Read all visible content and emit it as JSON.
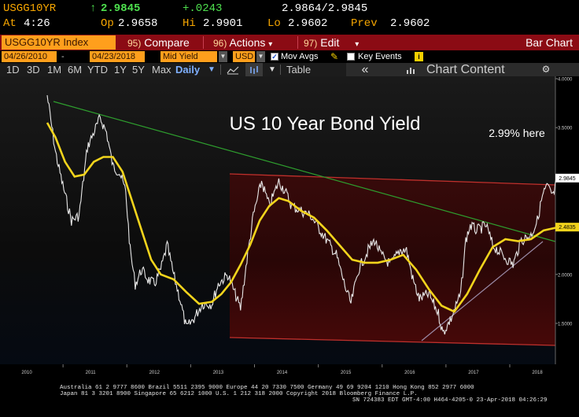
{
  "quote": {
    "ticker": "USGG10YR",
    "arrow": "↑",
    "last": "2.9845",
    "change": "+.0243",
    "bid_ask": "2.9864/2.9845",
    "time_label": "At",
    "time": "4:26",
    "open_label": "Op",
    "open": "2.9658",
    "high_label": "Hi",
    "high": "2.9901",
    "low_label": "Lo",
    "low": "2.9602",
    "prev_label": "Prev",
    "prev": "2.9602"
  },
  "toolbar": {
    "security": "USGG10YR Index",
    "compare_num": "95)",
    "compare": "Compare",
    "actions_num": "96)",
    "actions": "Actions",
    "edit_num": "97)",
    "edit": "Edit",
    "view": "Bar Chart"
  },
  "filters": {
    "start_date": "04/26/2010",
    "end_date": "04/23/2018",
    "field": "Mid Yield",
    "currency": "USD",
    "mov_avgs": "Mov Avgs",
    "key_events": "Key Events",
    "info_icon": "i"
  },
  "periods": {
    "items": [
      "1D",
      "3D",
      "1M",
      "6M",
      "YTD",
      "1Y",
      "5Y",
      "Max"
    ],
    "frequency": "Daily",
    "table": "Table",
    "chart_content": "Chart Content"
  },
  "colors": {
    "accent_orange": "#ff9f1c",
    "toolbar_red": "#8b0b14",
    "ma_yellow": "#f2d41c",
    "trend_green": "#2e9e2e",
    "channel_red": "#c0302c",
    "support_line": "#9a8aa6"
  },
  "chart_data": {
    "type": "line",
    "title": "US 10 Year Bond Yield",
    "annotation": "2.99% here",
    "xlabel": "",
    "ylabel": "",
    "x_ticks": [
      "2010",
      "2011",
      "2012",
      "2013",
      "2014",
      "2015",
      "2016",
      "2017",
      "2018"
    ],
    "y_ticks": [
      "4.0000",
      "3.5000",
      "3.0000",
      "2.5000",
      "2.0000",
      "1.5000"
    ],
    "ylim": [
      1.2,
      4.0
    ],
    "last_value_label": "2.9845",
    "ma_value_label": "2.4835",
    "series": [
      {
        "values": [
          [
            "2010.32",
            3.83
          ],
          [
            "2010.45",
            3.25
          ],
          [
            "2010.55",
            2.95
          ],
          [
            "2010.70",
            2.55
          ],
          [
            "2010.82",
            2.6
          ],
          [
            "2010.95",
            3.3
          ],
          [
            "2011.05",
            3.45
          ],
          [
            "2011.15",
            3.6
          ],
          [
            "2011.25",
            3.45
          ],
          [
            "2011.35",
            3.1
          ],
          [
            "2011.45",
            3.05
          ],
          [
            "2011.55",
            2.85
          ],
          [
            "2011.62",
            2.25
          ],
          [
            "2011.70",
            1.9
          ],
          [
            "2011.80",
            2.05
          ],
          [
            "2011.90",
            1.95
          ],
          [
            "2012.00",
            1.9
          ],
          [
            "2012.10",
            2.05
          ],
          [
            "2012.20",
            2.3
          ],
          [
            "2012.30",
            2.0
          ],
          [
            "2012.40",
            1.75
          ],
          [
            "2012.50",
            1.45
          ],
          [
            "2012.62",
            1.55
          ],
          [
            "2012.75",
            1.7
          ],
          [
            "2012.90",
            1.7
          ],
          [
            "2013.00",
            1.9
          ],
          [
            "2013.15",
            2.0
          ],
          [
            "2013.35",
            1.65
          ],
          [
            "2013.45",
            2.15
          ],
          [
            "2013.55",
            2.6
          ],
          [
            "2013.68",
            2.95
          ],
          [
            "2013.80",
            2.7
          ],
          [
            "2013.95",
            2.95
          ],
          [
            "2014.05",
            2.85
          ],
          [
            "2014.15",
            2.7
          ],
          [
            "2014.30",
            2.65
          ],
          [
            "2014.45",
            2.6
          ],
          [
            "2014.60",
            2.45
          ],
          [
            "2014.75",
            2.3
          ],
          [
            "2014.85",
            2.2
          ],
          [
            "2015.00",
            1.85
          ],
          [
            "2015.08",
            1.7
          ],
          [
            "2015.20",
            2.05
          ],
          [
            "2015.35",
            2.25
          ],
          [
            "2015.45",
            2.35
          ],
          [
            "2015.55",
            2.2
          ],
          [
            "2015.70",
            2.1
          ],
          [
            "2015.85",
            2.25
          ],
          [
            "2015.95",
            2.25
          ],
          [
            "2016.05",
            1.95
          ],
          [
            "2016.15",
            1.75
          ],
          [
            "2016.30",
            1.8
          ],
          [
            "2016.45",
            1.6
          ],
          [
            "2016.52",
            1.4
          ],
          [
            "2016.65",
            1.55
          ],
          [
            "2016.80",
            1.8
          ],
          [
            "2016.88",
            2.35
          ],
          [
            "2016.95",
            2.5
          ],
          [
            "2017.05",
            2.45
          ],
          [
            "2017.20",
            2.5
          ],
          [
            "2017.30",
            2.3
          ],
          [
            "2017.45",
            2.2
          ],
          [
            "2017.62",
            2.1
          ],
          [
            "2017.75",
            2.35
          ],
          [
            "2017.90",
            2.4
          ],
          [
            "2018.00",
            2.55
          ],
          [
            "2018.08",
            2.8
          ],
          [
            "2018.15",
            2.9
          ],
          [
            "2018.25",
            2.8
          ],
          [
            "2018.31",
            2.98
          ]
        ]
      },
      {
        "values": [
          [
            "2010.32",
            3.55
          ],
          [
            "2010.45",
            3.4
          ],
          [
            "2010.60",
            3.15
          ],
          [
            "2010.75",
            3.0
          ],
          [
            "2010.90",
            3.02
          ],
          [
            "2011.05",
            3.15
          ],
          [
            "2011.20",
            3.2
          ],
          [
            "2011.35",
            3.2
          ],
          [
            "2011.50",
            3.05
          ],
          [
            "2011.65",
            2.75
          ],
          [
            "2011.80",
            2.45
          ],
          [
            "2011.95",
            2.15
          ],
          [
            "2012.10",
            2.0
          ],
          [
            "2012.30",
            1.95
          ],
          [
            "2012.50",
            1.82
          ],
          [
            "2012.70",
            1.7
          ],
          [
            "2012.90",
            1.72
          ],
          [
            "2013.05",
            1.8
          ],
          [
            "2013.20",
            1.92
          ],
          [
            "2013.35",
            2.1
          ],
          [
            "2013.50",
            2.3
          ],
          [
            "2013.65",
            2.55
          ],
          [
            "2013.80",
            2.7
          ],
          [
            "2013.95",
            2.78
          ],
          [
            "2014.10",
            2.75
          ],
          [
            "2014.30",
            2.65
          ],
          [
            "2014.50",
            2.58
          ],
          [
            "2014.70",
            2.45
          ],
          [
            "2014.90",
            2.3
          ],
          [
            "2015.10",
            2.15
          ],
          [
            "2015.30",
            2.12
          ],
          [
            "2015.50",
            2.12
          ],
          [
            "2015.70",
            2.15
          ],
          [
            "2015.90",
            2.2
          ],
          [
            "2016.10",
            2.05
          ],
          [
            "2016.30",
            1.85
          ],
          [
            "2016.50",
            1.68
          ],
          [
            "2016.70",
            1.62
          ],
          [
            "2016.90",
            1.8
          ],
          [
            "2017.10",
            2.05
          ],
          [
            "2017.30",
            2.28
          ],
          [
            "2017.50",
            2.36
          ],
          [
            "2017.70",
            2.34
          ],
          [
            "2017.90",
            2.36
          ],
          [
            "2018.10",
            2.45
          ],
          [
            "2018.31",
            2.48
          ]
        ]
      }
    ]
  },
  "footer": {
    "line1": "Australia 61 2 9777 8600 Brazil 5511 2395 9000 Europe 44 20 7330 7500 Germany 49 69 9204 1210 Hong Kong 852 2977 6000",
    "line2": "Japan 81 3 3201 8900        Singapore 65 6212 1000     U.S. 1 212 318 2000          Copyright 2018 Bloomberg Finance L.P.",
    "line3": "SN 724383 EDT  GMT-4:00 H464-4205-0 23-Apr-2018 04:26:29"
  }
}
